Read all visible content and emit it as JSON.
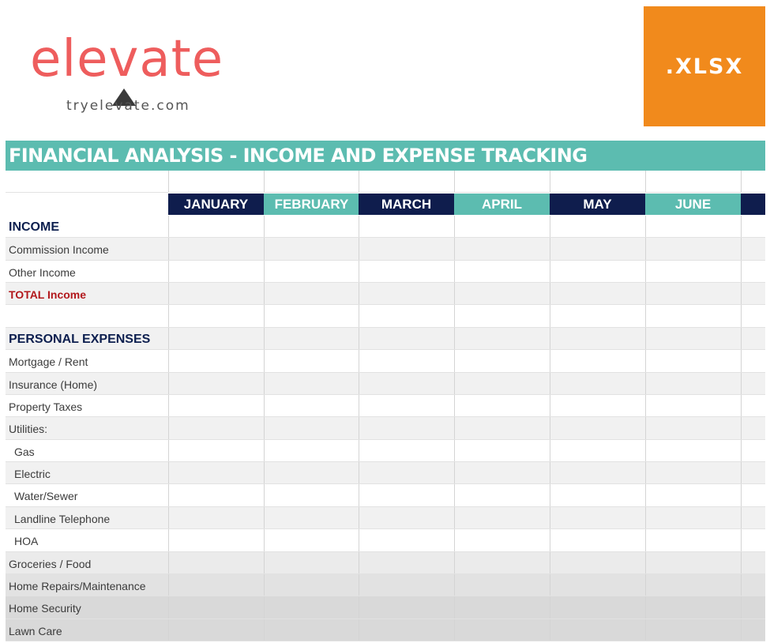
{
  "brand": {
    "logo_text": "elevate",
    "url": "tryelevate.com",
    "brand_color": "#ee5d5d"
  },
  "badge": {
    "label": ".XLSX",
    "color": "#f18a1c"
  },
  "sheet": {
    "title": "FINANCIAL ANALYSIS - INCOME AND EXPENSE TRACKING",
    "header_color": "#5cbcb0",
    "dark_color": "#0f1d4d",
    "months": [
      "JANUARY",
      "FEBRUARY",
      "MARCH",
      "APRIL",
      "MAY",
      "JUNE"
    ],
    "rows": [
      {
        "label": "INCOME",
        "kind": "section"
      },
      {
        "label": "Commission Income",
        "kind": "item"
      },
      {
        "label": "Other Income",
        "kind": "item"
      },
      {
        "label": "TOTAL Income",
        "kind": "total"
      },
      {
        "label": "",
        "kind": "blank"
      },
      {
        "label": "PERSONAL EXPENSES",
        "kind": "section"
      },
      {
        "label": "Mortgage / Rent",
        "kind": "item"
      },
      {
        "label": "Insurance (Home)",
        "kind": "item"
      },
      {
        "label": "Property Taxes",
        "kind": "item"
      },
      {
        "label": "Utilities:",
        "kind": "item"
      },
      {
        "label": "Gas",
        "kind": "sub"
      },
      {
        "label": "Electric",
        "kind": "sub"
      },
      {
        "label": "Water/Sewer",
        "kind": "sub"
      },
      {
        "label": "Landline Telephone",
        "kind": "sub"
      },
      {
        "label": "HOA",
        "kind": "sub"
      },
      {
        "label": "Groceries / Food",
        "kind": "item"
      },
      {
        "label": "Home Repairs/Maintenance",
        "kind": "item"
      },
      {
        "label": "Home Security",
        "kind": "item"
      },
      {
        "label": "Lawn Care",
        "kind": "item"
      }
    ]
  }
}
